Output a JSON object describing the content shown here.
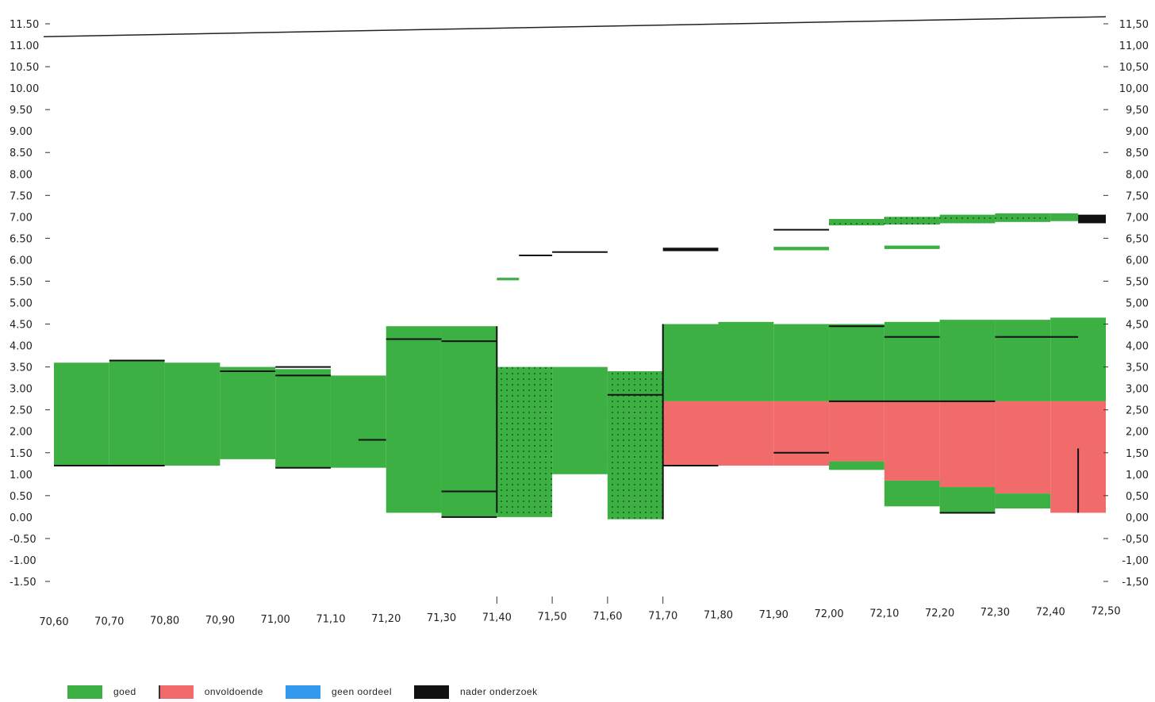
{
  "chart_data": {
    "type": "bar",
    "title": "",
    "xlabel": "",
    "ylabel": "",
    "xlim": [
      70.6,
      72.5
    ],
    "ylim": [
      -1.5,
      11.5
    ],
    "grid": false,
    "legend_position": "bottom-left",
    "x_tick_labels": [
      "70,60",
      "70,70",
      "70,80",
      "70,90",
      "71,00",
      "71,10",
      "71,20",
      "71,30",
      "71,40",
      "71,50",
      "71,60",
      "71,70",
      "71,80",
      "71,90",
      "72,00",
      "72,10",
      "72,20",
      "72,30",
      "72,40",
      "72,50"
    ],
    "left_tick_labels": [
      "11.50",
      "11.00",
      "10.50",
      "10.00",
      "9.50",
      "9.00",
      "8.50",
      "8.00",
      "7.50",
      "7.00",
      "6.50",
      "6.00",
      "5.50",
      "5.00",
      "4.50",
      "4.00",
      "3.50",
      "3.00",
      "2.50",
      "2.00",
      "1.50",
      "1.00",
      "0.50",
      "0.00",
      "-0.50",
      "-1.00",
      "-1.50"
    ],
    "right_tick_labels": [
      "11,50",
      "11,00",
      "10,50",
      "10,00",
      "9,50",
      "9,00",
      "8,50",
      "8,00",
      "7,50",
      "7,00",
      "6,50",
      "6,00",
      "5,50",
      "5,00",
      "4,50",
      "4,00",
      "3,50",
      "3,00",
      "2,50",
      "2,00",
      "1,50",
      "1,00",
      "0,50",
      "0,00",
      "-0,50",
      "-1,00",
      "-1,50"
    ],
    "legend": [
      {
        "label": "goed",
        "color": "#3cb043"
      },
      {
        "label": "onvoldoende",
        "color": "#f26b6b"
      },
      {
        "label": "geen oordeel",
        "color": "#3399ee"
      },
      {
        "label": "nader onderzoek",
        "color": "#111111"
      }
    ],
    "reference_line": {
      "x": [
        70.6,
        72.5
      ],
      "y": [
        11.2,
        11.7
      ],
      "color": "#222222"
    },
    "segments": [
      {
        "x0": 70.6,
        "x1": 70.7,
        "y0": 1.2,
        "y1": 3.6,
        "category": "goed"
      },
      {
        "x0": 70.7,
        "x1": 70.8,
        "y0": 1.2,
        "y1": 3.65,
        "category": "goed"
      },
      {
        "x0": 70.8,
        "x1": 70.9,
        "y0": 1.2,
        "y1": 3.6,
        "category": "goed"
      },
      {
        "x0": 70.9,
        "x1": 71.0,
        "y0": 1.35,
        "y1": 3.5,
        "category": "goed"
      },
      {
        "x0": 71.0,
        "x1": 71.1,
        "y0": 1.15,
        "y1": 3.45,
        "category": "goed"
      },
      {
        "x0": 71.1,
        "x1": 71.2,
        "y0": 1.15,
        "y1": 3.3,
        "category": "goed"
      },
      {
        "x0": 71.2,
        "x1": 71.3,
        "y0": 0.1,
        "y1": 4.45,
        "category": "goed"
      },
      {
        "x0": 71.3,
        "x1": 71.4,
        "y0": 0.0,
        "y1": 4.45,
        "category": "goed"
      },
      {
        "x0": 71.4,
        "x1": 71.5,
        "y0": 0.0,
        "y1": 3.5,
        "category": "goed",
        "pattern": "dotted"
      },
      {
        "x0": 71.5,
        "x1": 71.6,
        "y0": 1.0,
        "y1": 3.5,
        "category": "goed"
      },
      {
        "x0": 71.6,
        "x1": 71.7,
        "y0": -0.05,
        "y1": 3.4,
        "category": "goed",
        "pattern": "dotted"
      },
      {
        "x0": 71.7,
        "x1": 71.8,
        "y0": 2.7,
        "y1": 4.5,
        "category": "goed"
      },
      {
        "x0": 71.8,
        "x1": 71.9,
        "y0": 2.7,
        "y1": 4.55,
        "category": "goed"
      },
      {
        "x0": 71.9,
        "x1": 72.0,
        "y0": 2.7,
        "y1": 4.5,
        "category": "goed"
      },
      {
        "x0": 72.0,
        "x1": 72.1,
        "y0": 2.7,
        "y1": 4.5,
        "category": "goed"
      },
      {
        "x0": 72.1,
        "x1": 72.2,
        "y0": 2.7,
        "y1": 4.55,
        "category": "goed"
      },
      {
        "x0": 72.2,
        "x1": 72.3,
        "y0": 2.7,
        "y1": 4.6,
        "category": "goed"
      },
      {
        "x0": 72.3,
        "x1": 72.4,
        "y0": 2.7,
        "y1": 4.6,
        "category": "goed"
      },
      {
        "x0": 72.4,
        "x1": 72.5,
        "y0": 2.7,
        "y1": 4.65,
        "category": "goed"
      },
      {
        "x0": 71.7,
        "x1": 71.8,
        "y0": 1.2,
        "y1": 2.7,
        "category": "onvoldoende"
      },
      {
        "x0": 71.8,
        "x1": 71.9,
        "y0": 1.2,
        "y1": 2.7,
        "category": "onvoldoende"
      },
      {
        "x0": 71.9,
        "x1": 72.0,
        "y0": 1.2,
        "y1": 2.7,
        "category": "onvoldoende"
      },
      {
        "x0": 72.0,
        "x1": 72.1,
        "y0": 1.3,
        "y1": 2.7,
        "category": "onvoldoende"
      },
      {
        "x0": 72.1,
        "x1": 72.2,
        "y0": 0.85,
        "y1": 2.7,
        "category": "onvoldoende"
      },
      {
        "x0": 72.2,
        "x1": 72.3,
        "y0": 0.7,
        "y1": 2.7,
        "category": "onvoldoende"
      },
      {
        "x0": 72.3,
        "x1": 72.4,
        "y0": 0.55,
        "y1": 2.7,
        "category": "onvoldoende"
      },
      {
        "x0": 72.4,
        "x1": 72.5,
        "y0": 0.1,
        "y1": 2.7,
        "category": "onvoldoende"
      },
      {
        "x0": 72.0,
        "x1": 72.1,
        "y0": 1.1,
        "y1": 1.3,
        "category": "goed"
      },
      {
        "x0": 72.1,
        "x1": 72.2,
        "y0": 0.25,
        "y1": 0.85,
        "category": "goed"
      },
      {
        "x0": 72.2,
        "x1": 72.3,
        "y0": 0.1,
        "y1": 0.7,
        "category": "goed"
      },
      {
        "x0": 72.3,
        "x1": 72.4,
        "y0": 0.2,
        "y1": 0.55,
        "category": "goed"
      },
      {
        "x0": 71.4,
        "x1": 71.44,
        "y0": 5.52,
        "y1": 5.58,
        "category": "goed"
      },
      {
        "x0": 71.7,
        "x1": 71.8,
        "y0": 6.2,
        "y1": 6.28,
        "category": "nader onderzoek"
      },
      {
        "x0": 71.9,
        "x1": 72.0,
        "y0": 6.22,
        "y1": 6.3,
        "category": "goed"
      },
      {
        "x0": 72.1,
        "x1": 72.2,
        "y0": 6.25,
        "y1": 6.33,
        "category": "goed"
      },
      {
        "x0": 72.0,
        "x1": 72.1,
        "y0": 6.8,
        "y1": 6.95,
        "category": "goed",
        "pattern": "dotted"
      },
      {
        "x0": 72.1,
        "x1": 72.2,
        "y0": 6.82,
        "y1": 7.0,
        "category": "goed",
        "pattern": "dotted"
      },
      {
        "x0": 72.2,
        "x1": 72.3,
        "y0": 6.85,
        "y1": 7.05,
        "category": "goed",
        "pattern": "dotted"
      },
      {
        "x0": 72.3,
        "x1": 72.4,
        "y0": 6.88,
        "y1": 7.08,
        "category": "goed",
        "pattern": "dotted"
      },
      {
        "x0": 72.4,
        "x1": 72.45,
        "y0": 6.9,
        "y1": 7.08,
        "category": "goed"
      },
      {
        "x0": 72.45,
        "x1": 72.5,
        "y0": 6.85,
        "y1": 7.05,
        "category": "nader onderzoek"
      }
    ],
    "level_lines": [
      {
        "x0": 70.6,
        "x1": 70.8,
        "y": 1.2
      },
      {
        "x0": 70.7,
        "x1": 70.8,
        "y": 3.65
      },
      {
        "x0": 70.9,
        "x1": 71.0,
        "y": 3.4
      },
      {
        "x0": 71.0,
        "x1": 71.1,
        "y": 3.5
      },
      {
        "x0": 71.0,
        "x1": 71.1,
        "y": 3.3
      },
      {
        "x0": 71.0,
        "x1": 71.1,
        "y": 1.15
      },
      {
        "x0": 71.15,
        "x1": 71.2,
        "y": 1.8
      },
      {
        "x0": 71.2,
        "x1": 71.3,
        "y": 4.15
      },
      {
        "x0": 71.3,
        "x1": 71.4,
        "y": 4.1
      },
      {
        "x0": 71.3,
        "x1": 71.4,
        "y": 0.6
      },
      {
        "x0": 71.3,
        "x1": 71.4,
        "y": 0.0
      },
      {
        "x0": 71.44,
        "x1": 71.5,
        "y": 6.1
      },
      {
        "x0": 71.5,
        "x1": 71.6,
        "y": 6.18
      },
      {
        "x0": 71.6,
        "x1": 71.7,
        "y": 2.85
      },
      {
        "x0": 71.7,
        "x1": 71.8,
        "y": 1.2
      },
      {
        "x0": 71.9,
        "x1": 72.0,
        "y": 6.7
      },
      {
        "x0": 71.9,
        "x1": 72.0,
        "y": 1.5
      },
      {
        "x0": 72.0,
        "x1": 72.1,
        "y": 4.45
      },
      {
        "x0": 72.0,
        "x1": 72.3,
        "y": 2.7
      },
      {
        "x0": 72.1,
        "x1": 72.2,
        "y": 4.2
      },
      {
        "x0": 72.2,
        "x1": 72.3,
        "y": 0.1
      },
      {
        "x0": 72.3,
        "x1": 72.45,
        "y": 4.2
      }
    ]
  }
}
